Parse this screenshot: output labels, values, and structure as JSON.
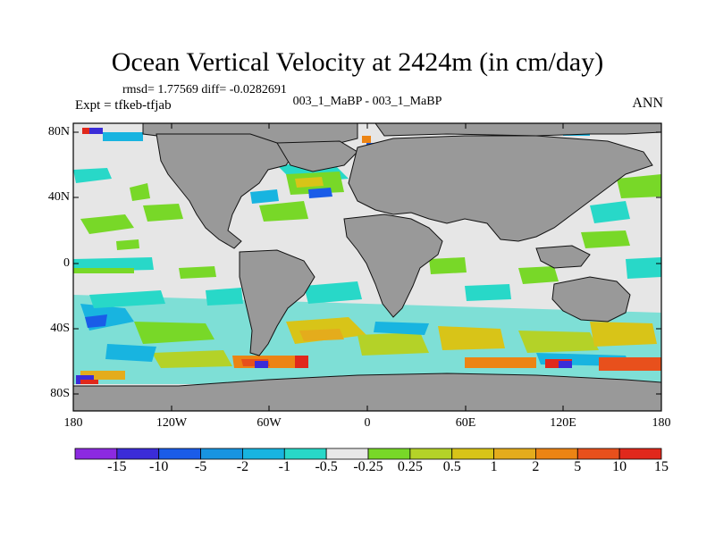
{
  "title": "Ocean Vertical Velocity at 2424m (in cm/day)",
  "stats": "rmsd= 1.77569  diff= -0.0282691",
  "experiment": "Expt = tfkeb-tfjab",
  "case_label": "003_1_MaBP - 003_1_MaBP",
  "season": "ANN",
  "lat_labels": [
    "80N",
    "40N",
    "0",
    "40S",
    "80S"
  ],
  "lon_labels": [
    "180",
    "120W",
    "60W",
    "0",
    "60E",
    "120E",
    "180"
  ],
  "colorbar": {
    "colors": [
      "#8c2ae0",
      "#3b2cd8",
      "#1a5ce8",
      "#1894e0",
      "#18b4e0",
      "#28d8c8",
      "#e8e8e8",
      "#78d828",
      "#b4d228",
      "#d8c418",
      "#e4ac1c",
      "#ec8414",
      "#e8501c",
      "#e0281c"
    ],
    "labels": [
      "-15",
      "-10",
      "-5",
      "-2",
      "-1",
      "-0.5",
      "-0.25",
      "0.25",
      "0.5",
      "1",
      "2",
      "5",
      "10",
      "15"
    ]
  },
  "colors": {
    "land": "#999999",
    "ocean_neutral": "#e6e6e6",
    "coast": "#111111"
  }
}
